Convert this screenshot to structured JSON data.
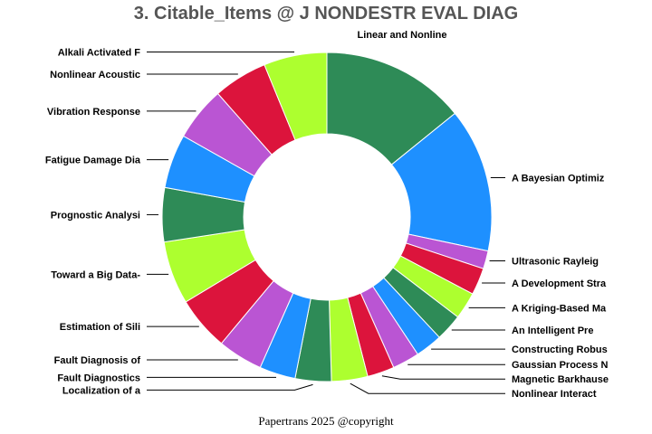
{
  "chart_data": {
    "type": "pie",
    "donut": true,
    "title": "3. Citable_Items @ J NONDESTR EVAL DIAG",
    "footer": "Papertrans 2025 @copyright",
    "start_angle_deg": 0,
    "direction": "clockwise",
    "slices": [
      {
        "label": "Linear and Nonline",
        "value": 16,
        "color": "#2e8b57"
      },
      {
        "label": "A Bayesian Optimiz",
        "value": 16,
        "color": "#1e90ff"
      },
      {
        "label": "Ultrasonic Rayleig",
        "value": 2,
        "color": "#ba55d3"
      },
      {
        "label": "A Development Stra",
        "value": 3,
        "color": "#dc143c"
      },
      {
        "label": "A Kriging-Based Ma",
        "value": 3,
        "color": "#adff2f"
      },
      {
        "label": "An Intelligent Pre",
        "value": 3,
        "color": "#2e8b57"
      },
      {
        "label": "Constructing Robus",
        "value": 3,
        "color": "#1e90ff"
      },
      {
        "label": "Gaussian Process N",
        "value": 3,
        "color": "#ba55d3"
      },
      {
        "label": "Magnetic Barkhause",
        "value": 3,
        "color": "#dc143c"
      },
      {
        "label": "Nonlinear Interact",
        "value": 4,
        "color": "#adff2f"
      },
      {
        "label": "Localization of a",
        "value": 4,
        "color": "#2e8b57"
      },
      {
        "label": "Fault Diagnostics",
        "value": 4,
        "color": "#1e90ff"
      },
      {
        "label": "Fault Diagnosis of",
        "value": 5,
        "color": "#ba55d3"
      },
      {
        "label": "Estimation of Sili",
        "value": 6,
        "color": "#dc143c"
      },
      {
        "label": "Toward a Big Data-",
        "value": 7,
        "color": "#adff2f"
      },
      {
        "label": "Prognostic Analysi",
        "value": 6,
        "color": "#2e8b57"
      },
      {
        "label": "Fatigue Damage Dia",
        "value": 6,
        "color": "#1e90ff"
      },
      {
        "label": "Vibration Response",
        "value": 6,
        "color": "#ba55d3"
      },
      {
        "label": "Nonlinear Acoustic",
        "value": 6,
        "color": "#dc143c"
      },
      {
        "label": "Alkali Activated F",
        "value": 7,
        "color": "#adff2f"
      }
    ]
  }
}
